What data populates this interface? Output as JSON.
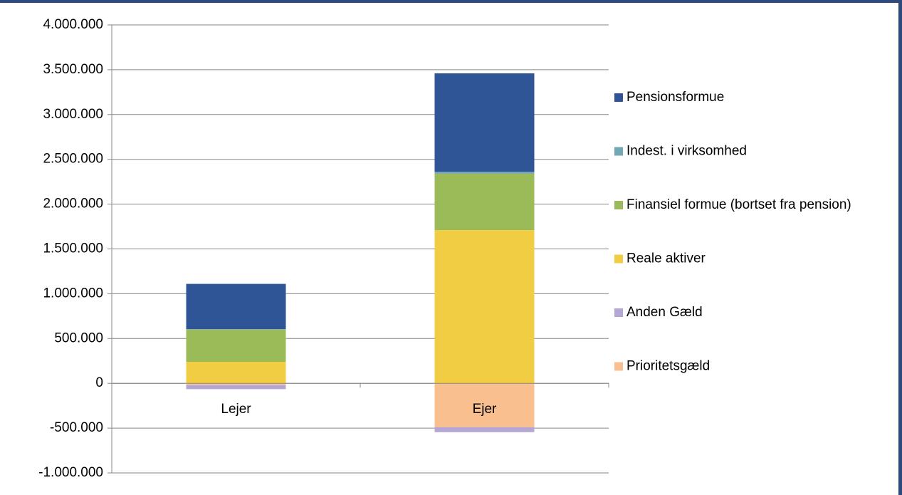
{
  "chart_data": {
    "type": "stacked_bar",
    "categories": [
      "Lejer",
      "Ejer"
    ],
    "series": [
      {
        "name": "Prioritetsgæld",
        "color": "#f9bf8f",
        "values": [
          -20000,
          -490000
        ]
      },
      {
        "name": "Anden Gæld",
        "color": "#b4a7d6",
        "values": [
          -45000,
          -55000
        ]
      },
      {
        "name": "Reale aktiver",
        "color": "#f1cd43",
        "values": [
          240000,
          1710000
        ]
      },
      {
        "name": "Finansiel formue (bortset fra pension)",
        "color": "#9bbb59",
        "values": [
          360000,
          630000
        ]
      },
      {
        "name": "Indest. i virksomhed",
        "color": "#70a8b3",
        "values": [
          5000,
          20000
        ]
      },
      {
        "name": "Pensionsformue",
        "color": "#2f5597",
        "values": [
          505000,
          1100000
        ]
      }
    ],
    "ylim": [
      -1000000,
      4000000
    ],
    "yticks": [
      {
        "value": -1000000,
        "label": "-1.000.000"
      },
      {
        "value": -500000,
        "label": "-500.000"
      },
      0,
      {
        "value": 500000,
        "label": "500.000"
      },
      {
        "value": 1000000,
        "label": "1.000.000"
      },
      {
        "value": 1500000,
        "label": "1.500.000"
      },
      {
        "value": 2000000,
        "label": "2.000.000"
      },
      {
        "value": 2500000,
        "label": "2.500.000"
      },
      {
        "value": 3000000,
        "label": "3.000.000"
      },
      {
        "value": 3500000,
        "label": "3.500.000"
      },
      {
        "value": 4000000,
        "label": "4.000.000"
      }
    ],
    "grid": true,
    "legend": "right"
  }
}
